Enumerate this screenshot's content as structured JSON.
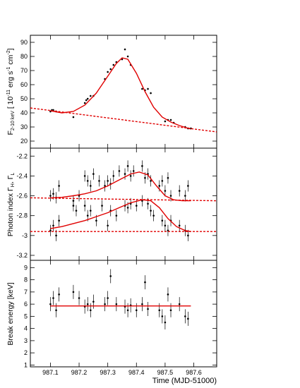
{
  "colors": {
    "model": "#e00000",
    "points": "#000000",
    "frame": "#000000"
  },
  "chart_data": [
    {
      "type": "scatter",
      "panel": "flux",
      "ylabel": "F2-10 keV [10⁻¹¹ erg s⁻¹ cm⁻²]",
      "ylabel_parts": {
        "main": "F",
        "sub": "2-10 keV",
        "rest": " [ 10",
        "exp1": "-11",
        "unit": " erg s",
        "exp2": "-1",
        "cm": " cm",
        "exp3": "-2",
        "close": "]"
      },
      "ylim": [
        15,
        95
      ],
      "yticks": [
        20,
        30,
        40,
        50,
        60,
        70,
        80,
        90
      ],
      "xlim": [
        987.03,
        987.68
      ],
      "grid": false,
      "series": [
        {
          "kind": "points",
          "x": [
            987.1,
            987.105,
            987.11,
            987.12,
            987.18,
            987.22,
            987.225,
            987.23,
            987.24,
            987.25,
            987.29,
            987.3,
            987.31,
            987.32,
            987.33,
            987.35,
            987.36,
            987.37,
            987.38,
            987.42,
            987.43,
            987.44,
            987.45,
            987.5,
            987.51,
            987.52,
            987.53,
            987.57,
            987.58,
            987.59
          ],
          "y": [
            41,
            42,
            42,
            41,
            37,
            47,
            49,
            50,
            52,
            52,
            64,
            69,
            71,
            74,
            76,
            78,
            85,
            80,
            74,
            57,
            56,
            57,
            54,
            34,
            35,
            35,
            33,
            30,
            29,
            29
          ]
        },
        {
          "kind": "model",
          "style": "solid",
          "x": [
            987.1,
            987.14,
            987.18,
            987.22,
            987.26,
            987.3,
            987.33,
            987.35,
            987.37,
            987.4,
            987.43,
            987.46,
            987.49,
            987.52,
            987.55,
            987.59
          ],
          "y": [
            41.5,
            40,
            41,
            45.5,
            54,
            66,
            75,
            79,
            78,
            68,
            55,
            44,
            37,
            33.5,
            31,
            28.5
          ]
        },
        {
          "kind": "model",
          "style": "dashed",
          "x": [
            987.03,
            987.68
          ],
          "y": [
            43.5,
            26.5
          ]
        }
      ]
    },
    {
      "type": "scatter",
      "panel": "photon-index",
      "ylabel": "Photon index  ΓH, ΓL",
      "ylabel_parts": {
        "main": "Photon index  Γ",
        "sub1": "H",
        "mid": ", Γ",
        "sub2": "L"
      },
      "ylim": [
        -3.25,
        -2.12
      ],
      "yticks": [
        -2.2,
        -2.4,
        -2.6,
        -2.8,
        -3.0,
        -3.2
      ],
      "xlim": [
        987.03,
        987.68
      ],
      "grid": false,
      "series": [
        {
          "kind": "points",
          "name": "ΓH",
          "x": [
            987.1,
            987.11,
            987.12,
            987.13,
            987.18,
            987.2,
            987.22,
            987.23,
            987.24,
            987.25,
            987.27,
            987.29,
            987.3,
            987.31,
            987.32,
            987.34,
            987.36,
            987.37,
            987.38,
            987.39,
            987.42,
            987.43,
            987.44,
            987.45,
            987.48,
            987.49,
            987.5,
            987.51,
            987.52,
            987.55,
            987.57,
            987.58
          ],
          "y": [
            -2.6,
            -2.58,
            -2.62,
            -2.5,
            -2.65,
            -2.6,
            -2.4,
            -2.45,
            -2.5,
            -2.38,
            -2.45,
            -2.5,
            -2.45,
            -2.48,
            -2.4,
            -2.35,
            -2.38,
            -2.3,
            -2.4,
            -2.35,
            -2.3,
            -2.42,
            -2.38,
            -2.45,
            -2.5,
            -2.45,
            -2.55,
            -2.42,
            -2.6,
            -2.55,
            -2.6,
            -2.5
          ]
        },
        {
          "kind": "points",
          "name": "ΓL",
          "x": [
            987.1,
            987.11,
            987.12,
            987.13,
            987.18,
            987.19,
            987.22,
            987.23,
            987.24,
            987.26,
            987.28,
            987.3,
            987.31,
            987.33,
            987.36,
            987.37,
            987.38,
            987.4,
            987.42,
            987.44,
            987.45,
            987.46,
            987.49,
            987.5,
            987.51,
            987.52,
            987.55,
            987.57,
            987.58
          ],
          "y": [
            -2.95,
            -2.9,
            -3.0,
            -2.85,
            -2.7,
            -2.75,
            -2.7,
            -2.8,
            -2.75,
            -2.85,
            -2.7,
            -2.9,
            -2.75,
            -2.8,
            -2.7,
            -2.72,
            -2.68,
            -2.7,
            -2.65,
            -2.68,
            -2.75,
            -2.8,
            -2.85,
            -2.9,
            -2.95,
            -2.85,
            -2.9,
            -2.95,
            -3.0
          ]
        },
        {
          "kind": "model",
          "style": "solid",
          "name": "ΓH",
          "x": [
            987.1,
            987.14,
            987.18,
            987.22,
            987.26,
            987.3,
            987.34,
            987.38,
            987.41,
            987.44,
            987.47,
            987.5,
            987.53,
            987.56,
            987.59
          ],
          "y": [
            -2.62,
            -2.615,
            -2.6,
            -2.58,
            -2.55,
            -2.5,
            -2.44,
            -2.38,
            -2.36,
            -2.39,
            -2.5,
            -2.6,
            -2.64,
            -2.65,
            -2.65
          ]
        },
        {
          "kind": "model",
          "style": "solid",
          "name": "ΓL",
          "x": [
            987.1,
            987.14,
            987.18,
            987.22,
            987.26,
            987.3,
            987.34,
            987.38,
            987.42,
            987.45,
            987.48,
            987.51,
            987.54,
            987.57,
            987.59
          ],
          "y": [
            -2.93,
            -2.91,
            -2.88,
            -2.85,
            -2.81,
            -2.77,
            -2.72,
            -2.67,
            -2.64,
            -2.65,
            -2.72,
            -2.83,
            -2.91,
            -2.95,
            -2.96
          ]
        },
        {
          "kind": "model",
          "style": "dashed",
          "name": "ΓH baseline",
          "x": [
            987.03,
            987.68
          ],
          "y": [
            -2.62,
            -2.65
          ]
        },
        {
          "kind": "model",
          "style": "dashed",
          "name": "ΓL baseline",
          "x": [
            987.03,
            987.68
          ],
          "y": [
            -2.96,
            -2.96
          ]
        }
      ]
    },
    {
      "type": "scatter",
      "panel": "break-energy",
      "ylabel": "Break energy  [keV]",
      "ylim": [
        0.85,
        9.6
      ],
      "yticks": [
        1,
        2,
        3,
        4,
        5,
        6,
        7,
        8,
        9
      ],
      "xlim": [
        987.03,
        987.68
      ],
      "xticks": [
        987.1,
        987.2,
        987.3,
        987.4,
        987.5,
        987.6
      ],
      "xticklabels": [
        "987.1",
        "987.2",
        "987.3",
        "987.4",
        "987.5",
        "987.6"
      ],
      "xlabel": "Time (MJD-51000)",
      "grid": false,
      "series": [
        {
          "kind": "points",
          "x": [
            987.1,
            987.11,
            987.12,
            987.13,
            987.18,
            987.2,
            987.22,
            987.23,
            987.24,
            987.25,
            987.29,
            987.3,
            987.31,
            987.33,
            987.36,
            987.37,
            987.38,
            987.4,
            987.42,
            987.43,
            987.44,
            987.48,
            987.49,
            987.5,
            987.51,
            987.52,
            987.55,
            987.57,
            987.58
          ],
          "y": [
            6.0,
            6.5,
            5.5,
            6.8,
            7.0,
            6.5,
            5.8,
            6.0,
            5.5,
            6.2,
            6.0,
            6.5,
            8.3,
            6.0,
            5.8,
            5.5,
            5.9,
            5.5,
            6.0,
            7.8,
            5.6,
            5.5,
            5.0,
            4.5,
            6.8,
            5.5,
            6.0,
            5.0,
            4.8
          ]
        },
        {
          "kind": "model",
          "style": "solid",
          "x": [
            987.1,
            987.59
          ],
          "y": [
            5.85,
            5.85
          ]
        }
      ]
    }
  ]
}
